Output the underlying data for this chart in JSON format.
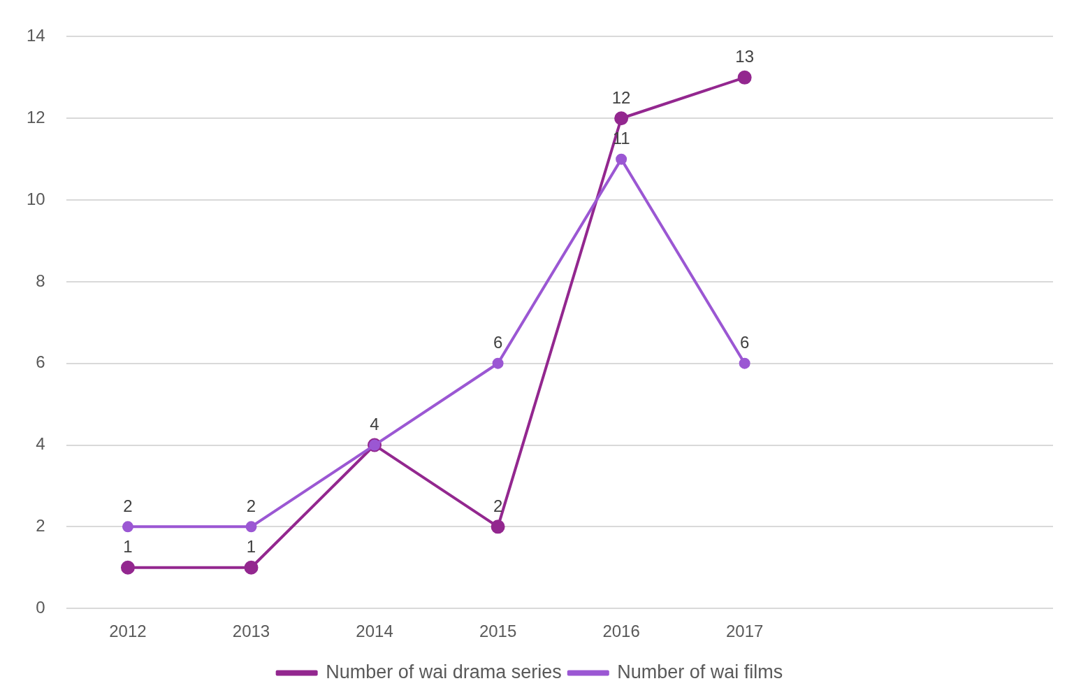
{
  "chart_data": {
    "type": "line",
    "categories": [
      "2012",
      "2013",
      "2014",
      "2015",
      "2016",
      "2017",
      null,
      null
    ],
    "series": [
      {
        "name": "Number of wai drama series",
        "color": "#93278f",
        "values": [
          1,
          1,
          4,
          2,
          12,
          13,
          null,
          null
        ],
        "value_labels": [
          "1",
          "1",
          "4",
          "2",
          "12",
          "13",
          null,
          null
        ]
      },
      {
        "name": "Number of wai films",
        "color": "#9b57d3",
        "values": [
          2,
          2,
          4,
          6,
          11,
          6,
          null,
          null
        ],
        "value_labels": [
          "2",
          "2",
          null,
          "6",
          "11",
          "6",
          null,
          null
        ]
      }
    ],
    "ylim": [
      0,
      14
    ],
    "yticks": [
      0,
      2,
      4,
      6,
      8,
      10,
      12,
      14
    ],
    "grid": "y",
    "legend": "bottom",
    "marker": "circle",
    "line_style": "solid"
  }
}
